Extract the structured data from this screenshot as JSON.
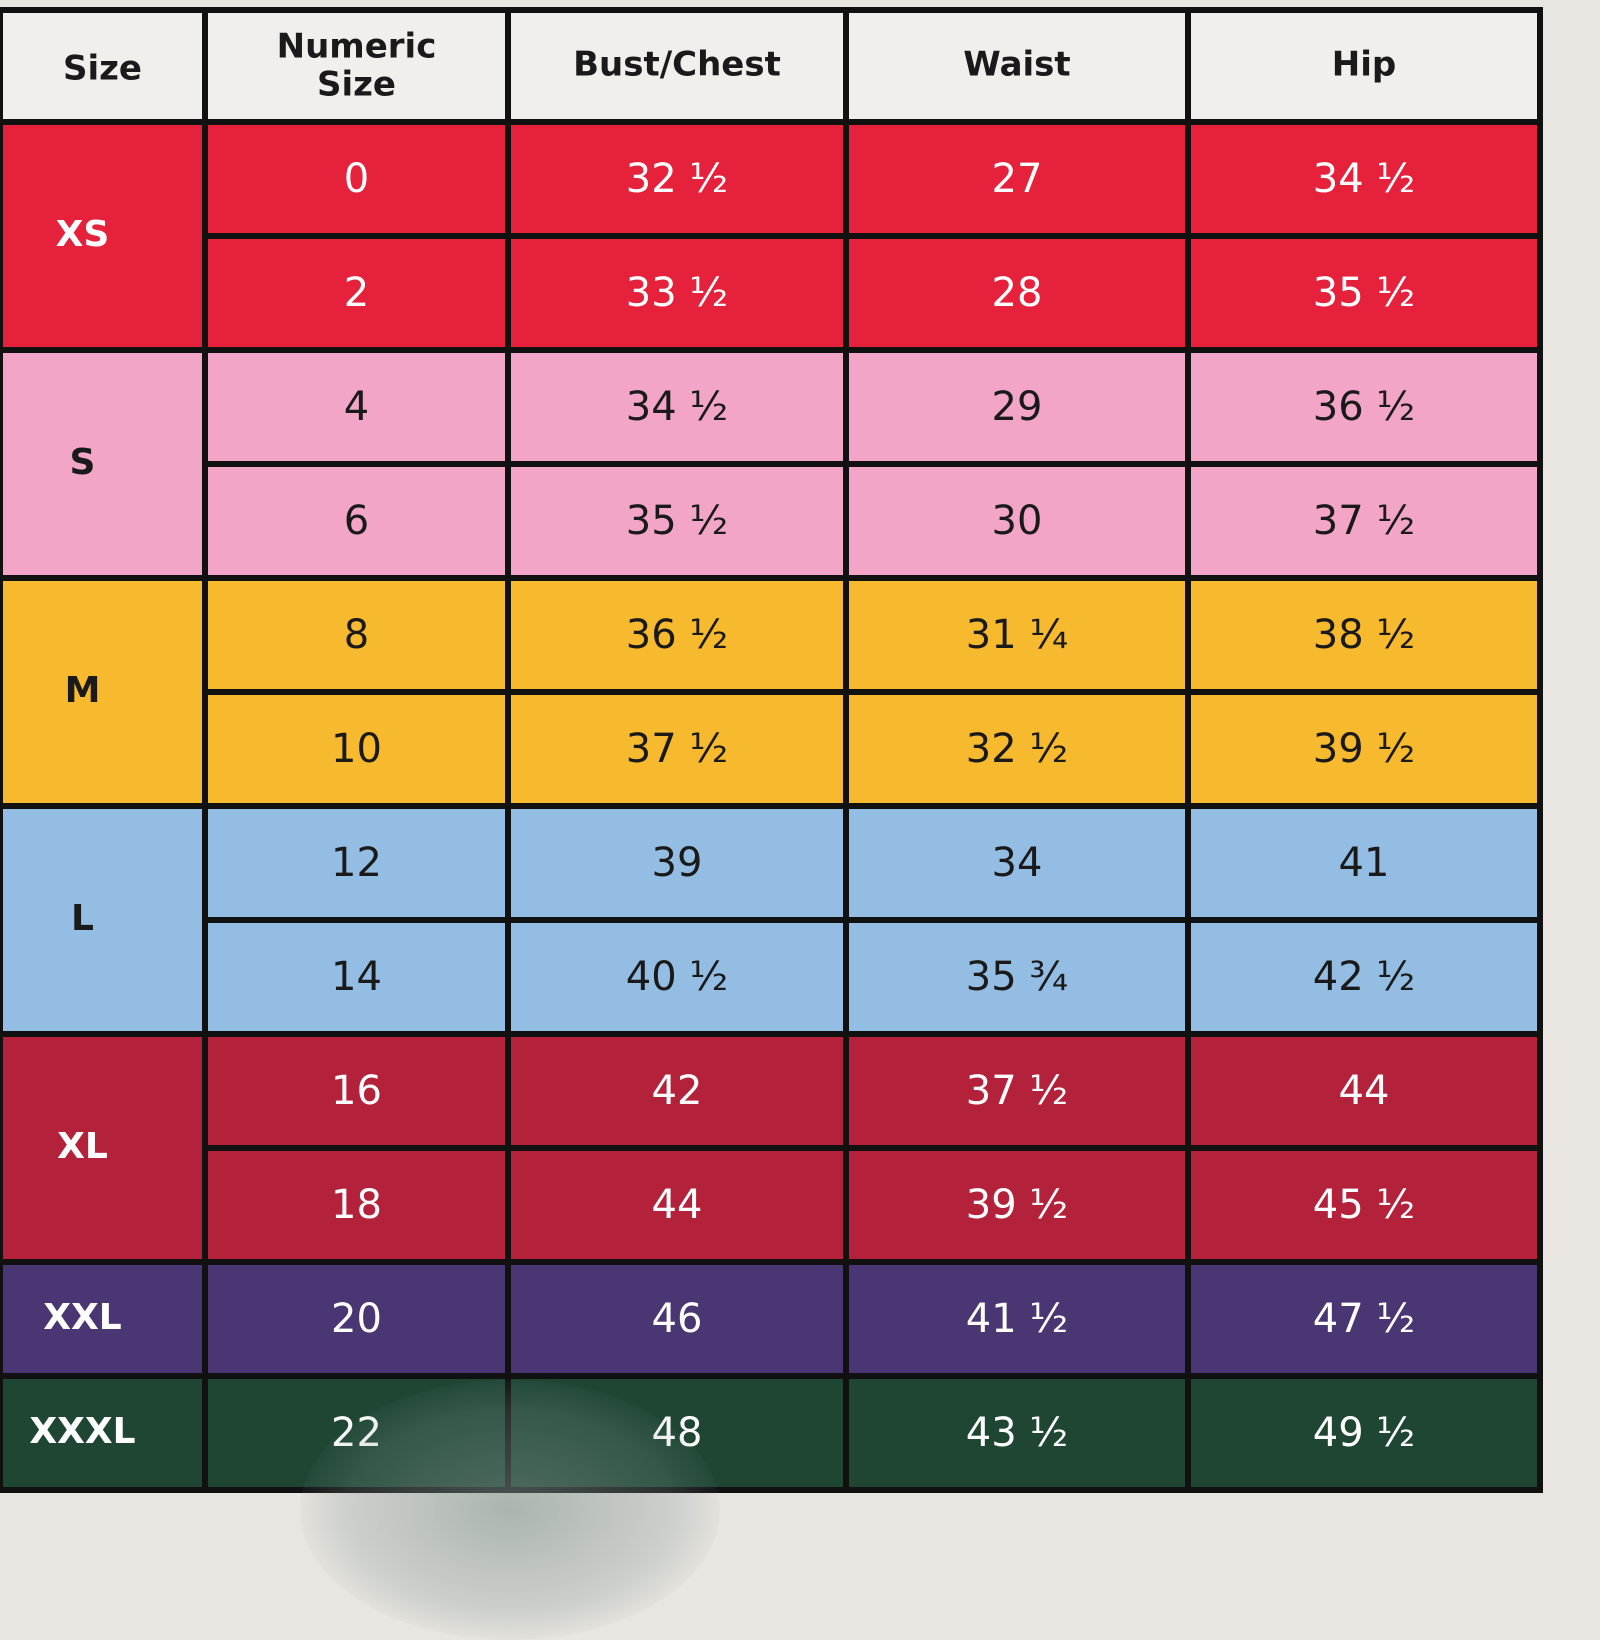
{
  "headers": {
    "size": "Size",
    "numeric_line1": "Numeric",
    "numeric_line2": "Size",
    "bust": "Bust/Chest",
    "waist": "Waist",
    "hip": "Hip"
  },
  "colors": {
    "header_bg": "#f1efeb",
    "line": "#111111",
    "dark_text": "#1a1a1a",
    "light_text": "#ffffff",
    "XS": "#e5213b",
    "S": "#f3a5c8",
    "M": "#f7b92d",
    "L": "#94bde3",
    "XL": "#b3223a",
    "XXL": "#4a3672",
    "XXXL": "#1e4633"
  },
  "groups": [
    {
      "label": "XS",
      "rows": [
        {
          "numeric": "0",
          "bust": "32 ½",
          "waist": "27",
          "hip": "34 ½"
        },
        {
          "numeric": "2",
          "bust": "33 ½",
          "waist": "28",
          "hip": "35 ½"
        }
      ]
    },
    {
      "label": "S",
      "rows": [
        {
          "numeric": "4",
          "bust": "34 ½",
          "waist": "29",
          "hip": "36 ½"
        },
        {
          "numeric": "6",
          "bust": "35 ½",
          "waist": "30",
          "hip": "37 ½"
        }
      ]
    },
    {
      "label": "M",
      "rows": [
        {
          "numeric": "8",
          "bust": "36 ½",
          "waist": "31 ¼",
          "hip": "38 ½"
        },
        {
          "numeric": "10",
          "bust": "37 ½",
          "waist": "32 ½",
          "hip": "39 ½"
        }
      ]
    },
    {
      "label": "L",
      "rows": [
        {
          "numeric": "12",
          "bust": "39",
          "waist": "34",
          "hip": "41"
        },
        {
          "numeric": "14",
          "bust": "40 ½",
          "waist": "35 ¾",
          "hip": "42 ½"
        }
      ]
    },
    {
      "label": "XL",
      "rows": [
        {
          "numeric": "16",
          "bust": "42",
          "waist": "37 ½",
          "hip": "44"
        },
        {
          "numeric": "18",
          "bust": "44",
          "waist": "39 ½",
          "hip": "45 ½"
        }
      ]
    },
    {
      "label": "XXL",
      "rows": [
        {
          "numeric": "20",
          "bust": "46",
          "waist": "41 ½",
          "hip": "47 ½"
        }
      ]
    },
    {
      "label": "XXXL",
      "rows": [
        {
          "numeric": "22",
          "bust": "48",
          "waist": "43 ½",
          "hip": "49 ½"
        }
      ]
    }
  ]
}
